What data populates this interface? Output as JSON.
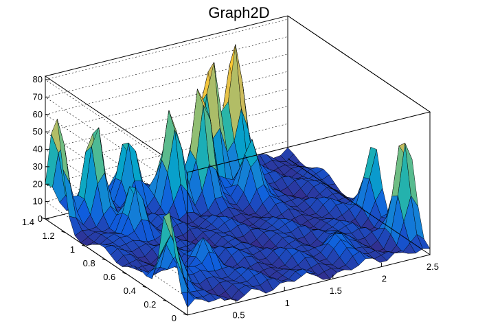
{
  "chart_data": {
    "type": "surface",
    "title": "Graph2D",
    "colormap": [
      "#352a87",
      "#0f5cdd",
      "#1481d6",
      "#06a4ca",
      "#2eb7a4",
      "#87bf77",
      "#d1bb59",
      "#fec832",
      "#f9fb0e"
    ],
    "x_ticks": [
      "0",
      "0.5",
      "1",
      "1.5",
      "2",
      "2.5"
    ],
    "y_ticks": [
      "0",
      "0.2",
      "0.4",
      "0.6",
      "0.8",
      "1",
      "1.2",
      "1.4"
    ],
    "z_ticks": [
      "0",
      "10",
      "20",
      "30",
      "40",
      "50",
      "60",
      "70",
      "80"
    ],
    "xlim": [
      0,
      2.5
    ],
    "ylim": [
      0,
      1.4
    ],
    "zlim": [
      0,
      82
    ],
    "grid": true,
    "peaks": [
      {
        "x": 0.02,
        "y": 1.3,
        "z": 60
      },
      {
        "x": 0.35,
        "y": 1.25,
        "z": 55
      },
      {
        "x": 0.75,
        "y": 1.3,
        "z": 38
      },
      {
        "x": 0.45,
        "y": 0.95,
        "z": 30
      },
      {
        "x": 0.0,
        "y": 0.2,
        "z": 52
      },
      {
        "x": 0.15,
        "y": 0.3,
        "z": 28
      },
      {
        "x": 1.05,
        "y": 1.15,
        "z": 58
      },
      {
        "x": 1.35,
        "y": 1.15,
        "z": 68
      },
      {
        "x": 1.6,
        "y": 1.3,
        "z": 73
      },
      {
        "x": 1.85,
        "y": 1.3,
        "z": 80
      },
      {
        "x": 1.75,
        "y": 1.05,
        "z": 35
      },
      {
        "x": 2.45,
        "y": 0.2,
        "z": 60
      },
      {
        "x": 2.5,
        "y": 0.55,
        "z": 40
      },
      {
        "x": 0.6,
        "y": 0.4,
        "z": 18
      },
      {
        "x": 1.8,
        "y": 0.25,
        "z": 12
      }
    ]
  }
}
